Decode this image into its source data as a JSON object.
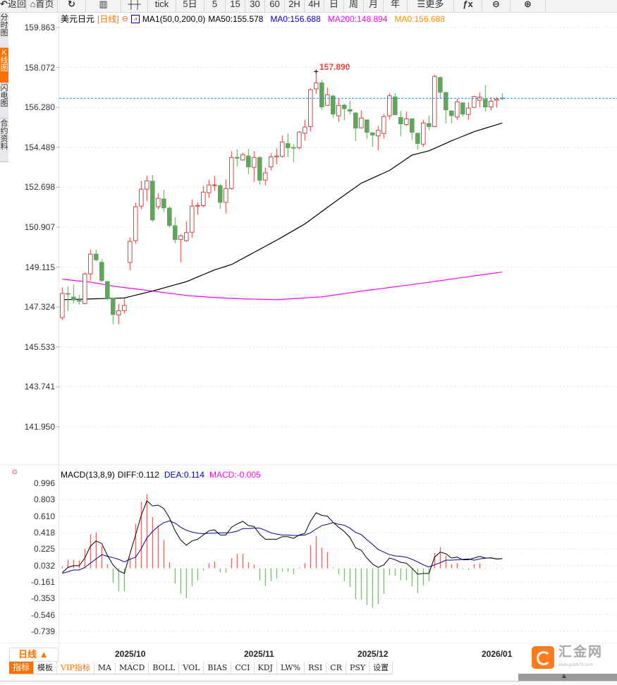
{
  "toolbar": {
    "items": [
      {
        "label": "返回",
        "icon": "back-arrow-icon",
        "glyph": "↶"
      },
      {
        "label": "首页",
        "icon": "home-icon",
        "glyph": "⌂"
      },
      {
        "label": "",
        "icon": "refresh-icon",
        "glyph": "↻"
      },
      {
        "label": "",
        "icon": "line-chart-icon",
        "glyph": "▥"
      },
      {
        "label": "",
        "icon": "candlestick-icon",
        "glyph": "┼┼"
      },
      {
        "label": "tick",
        "icon": "",
        "glyph": ""
      },
      {
        "label": "5日",
        "icon": "",
        "glyph": ""
      },
      {
        "label": "5",
        "icon": "",
        "glyph": ""
      },
      {
        "label": "15",
        "icon": "",
        "glyph": ""
      },
      {
        "label": "30",
        "icon": "",
        "glyph": ""
      },
      {
        "label": "60",
        "icon": "",
        "glyph": ""
      },
      {
        "label": "2H",
        "icon": "",
        "glyph": ""
      },
      {
        "label": "4H",
        "icon": "",
        "glyph": ""
      },
      {
        "label": "日",
        "icon": "",
        "glyph": ""
      },
      {
        "label": "周",
        "icon": "",
        "glyph": ""
      },
      {
        "label": "月",
        "icon": "",
        "glyph": ""
      },
      {
        "label": "年",
        "icon": "",
        "glyph": ""
      },
      {
        "label": "更多",
        "icon": "menu-icon",
        "glyph": "☰"
      },
      {
        "label": "",
        "icon": "formula-fx-icon",
        "glyph": "ƒx"
      },
      {
        "label": "",
        "icon": "zoom-out-icon",
        "glyph": "⊖"
      },
      {
        "label": "",
        "icon": "zoom-in-icon",
        "glyph": "⊕"
      }
    ]
  },
  "left_tabs": [
    {
      "label": "分时图",
      "active": false
    },
    {
      "label": "K线图",
      "active": true
    },
    {
      "label": "闪电图",
      "active": false
    },
    {
      "label": "合约资料",
      "active": false
    }
  ],
  "legend": {
    "symbol": "美元日元",
    "period": "[日线]",
    "ma_setting": "MA1(50,0,200,0)",
    "ma50": "MA50:155.578",
    "ma0_a": "MA0:156.688",
    "ma200": "MA200:148.894",
    "ma0_b": "MA0:156.688"
  },
  "colors": {
    "up": "#e0413a",
    "down": "#5fa55a",
    "ma50": "#000000",
    "ma200": "#ff00ff",
    "last_price_line": "#1a8cff",
    "dea": "#00009c",
    "accent": "#ff7200"
  },
  "price_axis": {
    "labels": [
      "159.863",
      "158.072",
      "156.280",
      "154.489",
      "152.698",
      "150.907",
      "149.115",
      "147.324",
      "145.533",
      "143.741",
      "141.950"
    ]
  },
  "peak_label": "157.890",
  "last_price": 156.688,
  "chart_data": [
    {
      "type": "candlestick",
      "fields": [
        "open",
        "high",
        "low",
        "close"
      ],
      "ylim": [
        141.95,
        159.863
      ],
      "candles": [
        [
          146.85,
          148.21,
          146.74,
          147.93
        ],
        [
          147.93,
          148.25,
          147.15,
          147.91
        ],
        [
          147.77,
          148.33,
          147.49,
          147.64
        ],
        [
          147.62,
          147.87,
          147.44,
          147.58
        ],
        [
          147.48,
          148.88,
          147.45,
          148.81
        ],
        [
          148.81,
          149.9,
          148.51,
          149.7
        ],
        [
          149.7,
          149.9,
          149.37,
          149.44
        ],
        [
          149.33,
          149.48,
          148.44,
          148.51
        ],
        [
          148.47,
          148.47,
          147.62,
          147.72
        ],
        [
          147.72,
          147.72,
          146.55,
          146.99
        ],
        [
          146.97,
          147.46,
          146.55,
          147.16
        ],
        [
          147.16,
          147.7,
          147.04,
          147.4
        ],
        [
          149.32,
          150.44,
          148.99,
          150.27
        ],
        [
          150.3,
          152.01,
          150.16,
          151.82
        ],
        [
          151.85,
          152.97,
          151.71,
          152.61
        ],
        [
          152.61,
          153.21,
          152.08,
          152.99
        ],
        [
          152.97,
          153.25,
          151.14,
          151.23
        ],
        [
          151.82,
          152.43,
          151.71,
          152.2
        ],
        [
          152.17,
          152.58,
          151.58,
          151.77
        ],
        [
          151.76,
          151.84,
          150.89,
          150.98
        ],
        [
          150.97,
          151.35,
          150.18,
          150.35
        ],
        [
          150.36,
          150.59,
          149.33,
          150.52
        ],
        [
          150.3,
          151.16,
          150.25,
          150.66
        ],
        [
          150.68,
          152.15,
          150.43,
          151.85
        ],
        [
          151.85,
          152.02,
          151.46,
          151.88
        ],
        [
          151.87,
          152.77,
          151.79,
          152.48
        ],
        [
          152.45,
          153.04,
          152.21,
          152.8
        ],
        [
          152.77,
          153.21,
          152.53,
          152.8
        ],
        [
          152.77,
          152.85,
          151.73,
          152.02
        ],
        [
          152.02,
          153.04,
          151.52,
          152.64
        ],
        [
          152.64,
          154.32,
          152.58,
          154.03
        ],
        [
          154.04,
          154.39,
          153.64,
          154.0
        ],
        [
          153.92,
          154.25,
          153.89,
          154.16
        ],
        [
          154.1,
          154.42,
          153.29,
          153.61
        ],
        [
          153.59,
          154.33,
          152.94,
          154.03
        ],
        [
          154.03,
          154.1,
          152.82,
          153.01
        ],
        [
          153.02,
          153.57,
          152.79,
          153.34
        ],
        [
          153.61,
          154.22,
          153.45,
          154.06
        ],
        [
          154.06,
          154.44,
          153.73,
          154.1
        ],
        [
          154.08,
          155.01,
          154.03,
          154.73
        ],
        [
          154.66,
          155.11,
          154.06,
          154.47
        ],
        [
          154.48,
          154.63,
          153.82,
          154.46
        ],
        [
          154.47,
          155.21,
          154.4,
          155.17
        ],
        [
          155.12,
          155.72,
          154.8,
          155.4
        ],
        [
          155.42,
          157.14,
          155.19,
          157.07
        ],
        [
          157.11,
          157.89,
          156.88,
          157.38
        ],
        [
          157.38,
          157.51,
          156.17,
          156.3
        ],
        [
          156.37,
          157.17,
          156.35,
          156.85
        ],
        [
          156.79,
          156.85,
          155.8,
          155.98
        ],
        [
          155.9,
          156.69,
          155.63,
          156.37
        ],
        [
          156.38,
          156.44,
          155.7,
          156.22
        ],
        [
          156.18,
          156.57,
          155.97,
          156.11
        ],
        [
          156.03,
          156.07,
          154.77,
          155.35
        ],
        [
          155.36,
          156.14,
          155.34,
          155.8
        ],
        [
          155.72,
          155.72,
          154.87,
          155.16
        ],
        [
          155.14,
          155.14,
          154.51,
          155.04
        ],
        [
          155.0,
          155.45,
          154.35,
          155.25
        ],
        [
          155.11,
          155.97,
          154.87,
          155.87
        ],
        [
          155.9,
          156.92,
          155.74,
          156.8
        ],
        [
          156.75,
          156.92,
          155.93,
          155.95
        ],
        [
          155.83,
          156.12,
          154.98,
          155.54
        ],
        [
          155.51,
          156.09,
          155.45,
          155.77
        ],
        [
          155.77,
          155.77,
          154.82,
          155.16
        ],
        [
          155.12,
          155.12,
          154.38,
          154.66
        ],
        [
          154.63,
          155.72,
          154.51,
          155.58
        ],
        [
          155.56,
          155.91,
          155.26,
          155.42
        ],
        [
          155.42,
          157.75,
          155.4,
          157.67
        ],
        [
          157.62,
          157.67,
          156.67,
          156.96
        ],
        [
          156.95,
          156.95,
          155.56,
          156.17
        ],
        [
          156.12,
          156.12,
          155.56,
          155.91
        ],
        [
          155.85,
          156.67,
          155.72,
          156.53
        ],
        [
          156.48,
          156.51,
          155.88,
          155.98
        ],
        [
          155.96,
          156.51,
          155.72,
          156.25
        ],
        [
          156.28,
          156.8,
          156.26,
          156.77
        ],
        [
          156.6,
          156.95,
          156.3,
          156.74
        ],
        [
          156.64,
          157.27,
          156.09,
          156.3
        ],
        [
          156.3,
          156.74,
          156.14,
          156.56
        ],
        [
          156.6,
          156.74,
          156.27,
          156.65
        ],
        [
          156.7,
          156.91,
          156.6,
          156.69
        ]
      ],
      "ma50": [
        {
          "bar": 1,
          "value": 147.65
        },
        {
          "bar": 12,
          "value": 147.73
        },
        {
          "bar": 17,
          "value": 148.04
        },
        {
          "bar": 23,
          "value": 148.46
        },
        {
          "bar": 28,
          "value": 148.99
        },
        {
          "bar": 31,
          "value": 149.23
        },
        {
          "bar": 39,
          "value": 150.32
        },
        {
          "bar": 44,
          "value": 151.05
        },
        {
          "bar": 49,
          "value": 151.98
        },
        {
          "bar": 54,
          "value": 152.88
        },
        {
          "bar": 59,
          "value": 153.45
        },
        {
          "bar": 63,
          "value": 154.14
        },
        {
          "bar": 66,
          "value": 154.33
        },
        {
          "bar": 70,
          "value": 154.78
        },
        {
          "bar": 74,
          "value": 155.19
        },
        {
          "bar": 79,
          "value": 155.578
        }
      ],
      "ma200": [
        {
          "bar": 1,
          "value": 148.57
        },
        {
          "bar": 6,
          "value": 148.44
        },
        {
          "bar": 10,
          "value": 148.26
        },
        {
          "bar": 17,
          "value": 148.04
        },
        {
          "bar": 23,
          "value": 147.84
        },
        {
          "bar": 28,
          "value": 147.75
        },
        {
          "bar": 33,
          "value": 147.69
        },
        {
          "bar": 39,
          "value": 147.65
        },
        {
          "bar": 47,
          "value": 147.78
        },
        {
          "bar": 55,
          "value": 148.07
        },
        {
          "bar": 63,
          "value": 148.33
        },
        {
          "bar": 72,
          "value": 148.65
        },
        {
          "bar": 79,
          "value": 148.894
        }
      ],
      "x_tick_labels": [
        "2025/10",
        "2025/11",
        "2025/12",
        "2026/01"
      ]
    },
    {
      "type": "macd",
      "title": "MACD(13,8,9)",
      "diff_label": "DIFF:0.112",
      "dea_label": "DEA:0.114",
      "macd_label": "MACD:-0.005",
      "ylim": [
        -0.739,
        0.996
      ],
      "y_tick_labels": [
        "0.996",
        "0.803",
        "0.610",
        "0.418",
        "0.225",
        "0.032",
        "-0.161",
        "-0.353",
        "-0.546",
        "-0.739"
      ],
      "diff": [
        -0.05,
        0.01,
        0.03,
        0.03,
        0.12,
        0.26,
        0.32,
        0.29,
        0.15,
        0.04,
        -0.03,
        -0.06,
        0.17,
        0.39,
        0.62,
        0.79,
        0.73,
        0.74,
        0.7,
        0.59,
        0.44,
        0.33,
        0.27,
        0.32,
        0.34,
        0.39,
        0.44,
        0.45,
        0.39,
        0.39,
        0.48,
        0.52,
        0.55,
        0.5,
        0.49,
        0.4,
        0.34,
        0.34,
        0.34,
        0.37,
        0.37,
        0.35,
        0.39,
        0.41,
        0.55,
        0.65,
        0.62,
        0.61,
        0.54,
        0.48,
        0.43,
        0.36,
        0.24,
        0.21,
        0.12,
        0.05,
        0.01,
        0.04,
        0.12,
        0.1,
        0.07,
        0.06,
        0.0,
        -0.07,
        -0.06,
        -0.06,
        0.13,
        0.19,
        0.17,
        0.12,
        0.13,
        0.1,
        0.1,
        0.12,
        0.14,
        0.12,
        0.12,
        0.11,
        0.112
      ],
      "dea": [
        -0.06,
        -0.04,
        -0.02,
        -0.02,
        0.01,
        0.06,
        0.11,
        0.16,
        0.14,
        0.125,
        0.105,
        0.075,
        0.105,
        0.13,
        0.23,
        0.355,
        0.43,
        0.49,
        0.535,
        0.555,
        0.53,
        0.48,
        0.445,
        0.425,
        0.41,
        0.405,
        0.41,
        0.41,
        0.415,
        0.415,
        0.42,
        0.435,
        0.465,
        0.465,
        0.47,
        0.47,
        0.445,
        0.415,
        0.4,
        0.39,
        0.39,
        0.385,
        0.385,
        0.39,
        0.415,
        0.46,
        0.5,
        0.515,
        0.535,
        0.515,
        0.505,
        0.47,
        0.42,
        0.395,
        0.335,
        0.28,
        0.22,
        0.19,
        0.16,
        0.145,
        0.14,
        0.13,
        0.105,
        0.075,
        0.04,
        0.015,
        0.04,
        0.065,
        0.095,
        0.095,
        0.1,
        0.105,
        0.11,
        0.095,
        0.11,
        0.118,
        0.123,
        0.108,
        0.114
      ],
      "macd": [
        0.02,
        0.1,
        0.1,
        0.09,
        0.23,
        0.4,
        0.42,
        0.26,
        0.05,
        -0.17,
        -0.27,
        -0.27,
        0.13,
        0.52,
        0.78,
        0.87,
        0.6,
        0.5,
        0.33,
        0.07,
        -0.18,
        -0.3,
        -0.35,
        -0.21,
        -0.14,
        -0.03,
        0.06,
        0.08,
        -0.05,
        -0.05,
        0.12,
        0.17,
        0.17,
        0.07,
        0.04,
        -0.14,
        -0.21,
        -0.15,
        -0.12,
        -0.04,
        -0.04,
        -0.07,
        0.01,
        0.06,
        0.27,
        0.38,
        0.24,
        0.19,
        0.01,
        -0.07,
        -0.15,
        -0.22,
        -0.36,
        -0.37,
        -0.43,
        -0.46,
        -0.42,
        -0.3,
        -0.08,
        -0.09,
        -0.14,
        -0.14,
        -0.21,
        -0.29,
        -0.2,
        -0.15,
        0.18,
        0.25,
        0.15,
        0.05,
        0.06,
        -0.01,
        -0.02,
        0.05,
        0.06,
        0.005,
        -0.005,
        0.005,
        -0.005
      ]
    }
  ],
  "bottom": {
    "period_label": "日线 ▲",
    "indicator_tabs": [
      {
        "label": "指标",
        "style": "active"
      },
      {
        "label": "模板",
        "style": ""
      },
      {
        "label": "VIP指标",
        "style": "vip"
      },
      {
        "label": "MA",
        "style": ""
      },
      {
        "label": "MACD",
        "style": ""
      },
      {
        "label": "BOLL",
        "style": ""
      },
      {
        "label": "VOL",
        "style": ""
      },
      {
        "label": "BIAS",
        "style": ""
      },
      {
        "label": "CCI",
        "style": ""
      },
      {
        "label": "KDJ",
        "style": ""
      },
      {
        "label": "LW%",
        "style": ""
      },
      {
        "label": "RSI",
        "style": ""
      },
      {
        "label": "CR",
        "style": ""
      },
      {
        "label": "PSY",
        "style": ""
      },
      {
        "label": "设置",
        "style": ""
      }
    ],
    "logo_name": "汇金网",
    "logo_url": "www.gold678.com"
  }
}
